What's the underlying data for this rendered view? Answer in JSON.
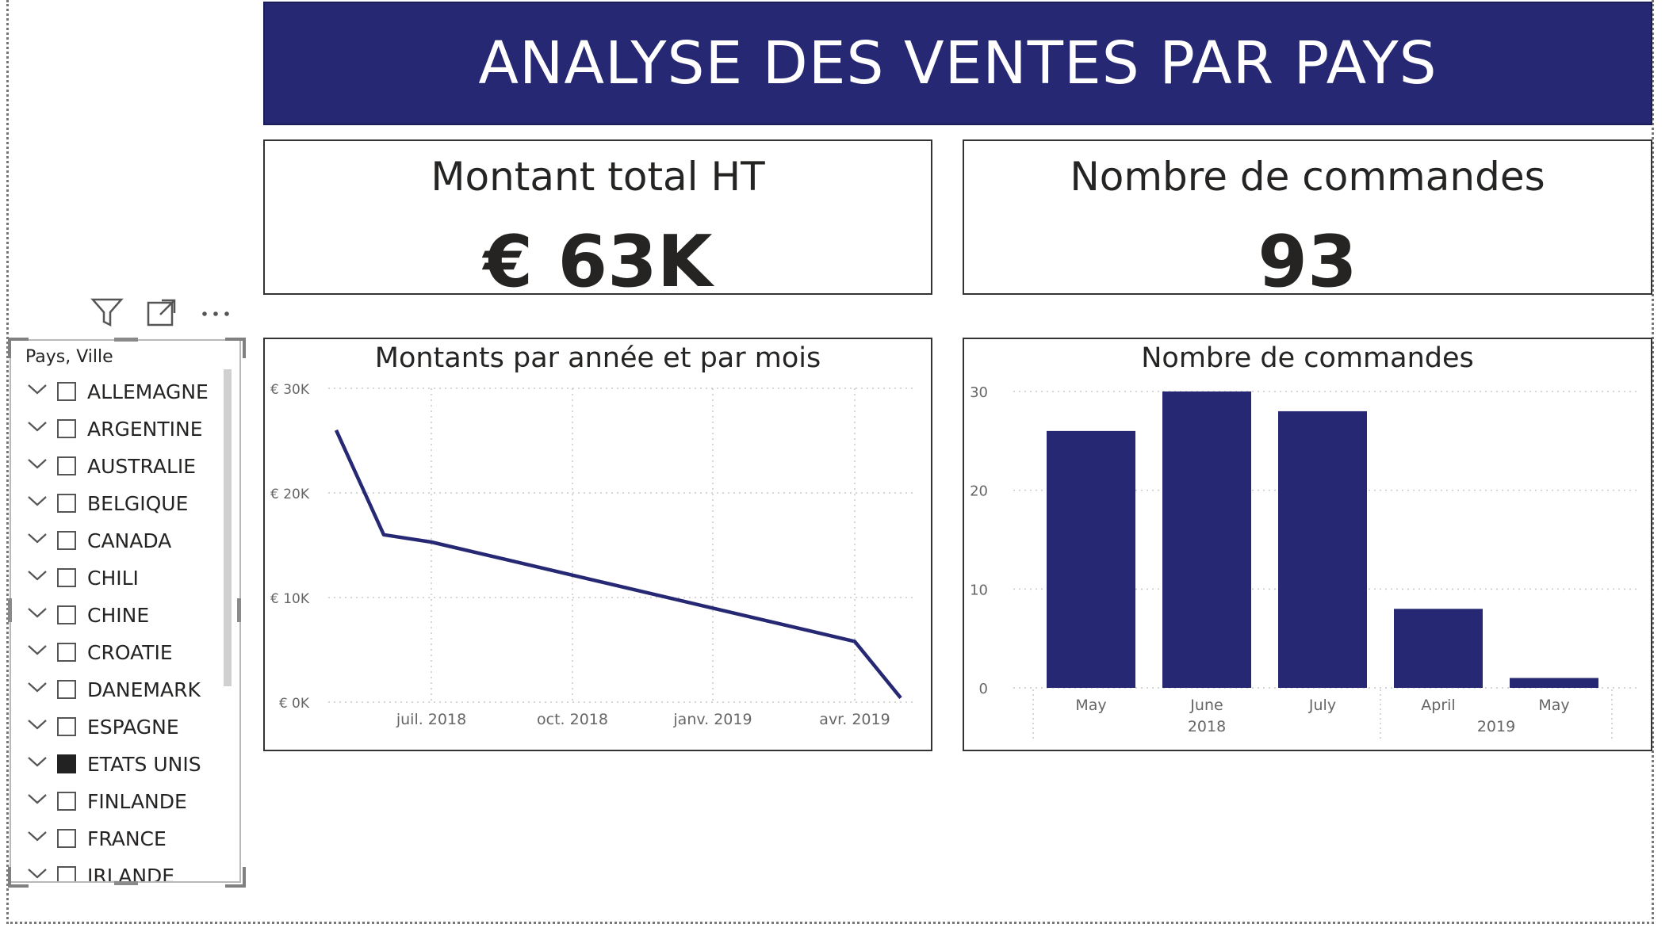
{
  "banner": {
    "title": "ANALYSE DES VENTES PAR PAYS"
  },
  "cards": {
    "amount": {
      "title": "Montant total HT",
      "value": "€ 63K"
    },
    "orders": {
      "title": "Nombre de commandes",
      "value": "93"
    }
  },
  "slicer": {
    "header_icons": [
      "filter-icon",
      "focus-mode-icon",
      "more-options-icon"
    ],
    "label": "Pays, Ville",
    "items": [
      {
        "label": "ALLEMAGNE",
        "checked": false
      },
      {
        "label": "ARGENTINE",
        "checked": false
      },
      {
        "label": "AUSTRALIE",
        "checked": false
      },
      {
        "label": "BELGIQUE",
        "checked": false
      },
      {
        "label": "CANADA",
        "checked": false
      },
      {
        "label": "CHILI",
        "checked": false
      },
      {
        "label": "CHINE",
        "checked": false
      },
      {
        "label": "CROATIE",
        "checked": false
      },
      {
        "label": "DANEMARK",
        "checked": false
      },
      {
        "label": "ESPAGNE",
        "checked": false
      },
      {
        "label": "ETATS UNIS",
        "checked": true
      },
      {
        "label": "FINLANDE",
        "checked": false
      },
      {
        "label": "FRANCE",
        "checked": false
      },
      {
        "label": "IRLANDE",
        "checked": false
      }
    ]
  },
  "colors": {
    "brand": "#262873",
    "series": "#262873",
    "text": "#252423"
  },
  "chart_data": [
    {
      "type": "line",
      "title": "Montants par année et par mois",
      "x": [
        "2018-05",
        "2018-06",
        "2018-07",
        "2019-04",
        "2019-05"
      ],
      "series": [
        {
          "values": [
            26000,
            16000,
            15300,
            5800,
            400
          ]
        }
      ],
      "x_tick_labels": [
        "juil. 2018",
        "oct. 2018",
        "janv. 2019",
        "avr. 2019"
      ],
      "x_tick_positions": [
        "2018-07",
        "2018-10",
        "2019-01",
        "2019-04"
      ],
      "y_tick_labels": [
        "€ 0K",
        "€ 10K",
        "€ 20K",
        "€ 30K"
      ],
      "ylim": [
        0,
        30000
      ],
      "grid": true
    },
    {
      "type": "bar",
      "title": "Nombre de commandes",
      "categories": [
        "May",
        "June",
        "July",
        "April",
        "May"
      ],
      "groups": [
        {
          "label": "2018",
          "categories": [
            "May",
            "June",
            "July"
          ]
        },
        {
          "label": "2019",
          "categories": [
            "April",
            "May"
          ]
        }
      ],
      "values": [
        26,
        30,
        28,
        8,
        1
      ],
      "y_tick_labels": [
        "0",
        "10",
        "20",
        "30"
      ],
      "ylim": [
        0,
        30
      ],
      "grid": true
    }
  ]
}
